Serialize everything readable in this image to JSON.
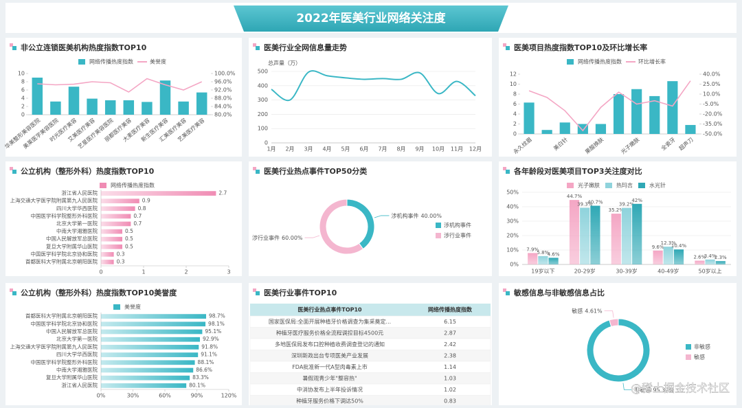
{
  "title": "2022年医美行业网络关注度",
  "watermark": "@稀土掘金技术社区",
  "chart_data": [
    {
      "type": "bar",
      "title": "非公立连锁医美机构热度指数TOP10",
      "categories": [
        "华美整形美容医院",
        "美莱医学美容医院",
        "时光医疗美容",
        "艾美医疗美容",
        "艺星医疗美容医院",
        "丽都医疗美容",
        "大麦医疗美容",
        "新生医疗美容",
        "汇美医疗美容",
        "艺美医疗美容"
      ],
      "series": [
        {
          "name": "网络传播热度指数",
          "type": "bar",
          "color": "#3ab7c5",
          "values": [
            9,
            3.2,
            6.8,
            3.9,
            3.5,
            3.5,
            3.1,
            8.3,
            3.2,
            5.4
          ]
        },
        {
          "name": "美誉度",
          "type": "line",
          "axis": "y2",
          "color": "#f4a6c4",
          "values": [
            95,
            94.5,
            94.8,
            96,
            95.5,
            91,
            97.5,
            94.5,
            92,
            96
          ]
        }
      ],
      "ylim": [
        0,
        10
      ],
      "yticks": [
        0,
        2,
        4,
        6,
        8,
        10
      ],
      "y2lim": [
        80,
        100
      ],
      "y2ticks": [
        {
          "value": 80,
          "label": "80.0%"
        },
        {
          "value": 84,
          "label": "84.0%"
        },
        {
          "value": 88,
          "label": "88.0%"
        },
        {
          "value": 92,
          "label": "92.0%"
        },
        {
          "value": 96,
          "label": "96.0%"
        },
        {
          "value": 100,
          "label": "100.0%"
        }
      ],
      "grid": false,
      "legend": "top"
    },
    {
      "type": "line",
      "title": "医美行业全网信息量走势",
      "ylabel": "总声量（万）",
      "categories": [
        "1月",
        "2月",
        "3月",
        "4月",
        "5月",
        "6月",
        "7月",
        "8月",
        "9月",
        "10月",
        "11月",
        "12月"
      ],
      "values": [
        375,
        300,
        495,
        470,
        455,
        445,
        450,
        445,
        490,
        345,
        430,
        330
      ],
      "color": "#3ab7c5",
      "ylim": [
        0,
        500
      ],
      "yticks": [
        0,
        100,
        200,
        300,
        400,
        500
      ],
      "grid": true
    },
    {
      "type": "bar",
      "title": "医美项目热度指数TOP10及环比增长率",
      "categories": [
        "永久纹眉",
        null,
        "美白针",
        null,
        "果酸换肤",
        null,
        "光子嫩肤",
        null,
        "全瓷牙",
        "超声刀"
      ],
      "series": [
        {
          "name": "网络传播热度指数",
          "type": "bar",
          "color": "#3ab7c5",
          "values": [
            6.3,
            0.8,
            2.3,
            2.0,
            2.0,
            8.0,
            9.0,
            7.6,
            10.6,
            1.8
          ]
        },
        {
          "name": "环比增长率",
          "type": "line",
          "axis": "y2",
          "color": "#f4a6c4",
          "values": [
            15,
            5,
            -15,
            -45,
            -10,
            13,
            -5,
            0,
            -8,
            30
          ]
        }
      ],
      "ylim": [
        0,
        12
      ],
      "yticks": [
        0,
        2,
        4,
        6,
        8,
        10,
        12
      ],
      "y2lim": [
        -50,
        40
      ],
      "y2ticks": [
        {
          "value": -50,
          "label": "-50.0%"
        },
        {
          "value": -35,
          "label": "-35.0%"
        },
        {
          "value": -20,
          "label": "-20.0%"
        },
        {
          "value": -5,
          "label": "-5.0%"
        },
        {
          "value": 10,
          "label": "10.0%"
        },
        {
          "value": 25,
          "label": "25.0%"
        },
        {
          "value": 40,
          "label": "40.0%"
        }
      ],
      "grid": false,
      "legend": "top"
    },
    {
      "type": "hbar",
      "title": "公立机构（整形外科）热度指数TOP10",
      "categories": [
        "浙江省人民医院",
        "上海交通大学医学院附属第九人民医院",
        "四川大学华西医院",
        "中国医学科学院整形外科医院",
        "北京大学第一医院",
        "中南大学湘雅医院",
        "中国人民解放军总医院",
        "复旦大学附属华山医院",
        "中国医学科学院北京协和医院",
        "首都医科大学附属北京朝阳医院"
      ],
      "series": [
        {
          "name": "网络传播热度指数",
          "color": "#f08cb4",
          "values": [
            2.7,
            0.9,
            0.8,
            0.7,
            0.7,
            0.5,
            0.5,
            0.5,
            0.3,
            0.3
          ]
        }
      ],
      "xlim": [
        0,
        3
      ],
      "xticks": [
        0,
        1,
        2,
        3
      ],
      "legend": "top"
    },
    {
      "type": "pie",
      "title": "医美行业热点事件TOP50分类",
      "categories": [
        "涉机构事件",
        "涉行业事件"
      ],
      "values": [
        40,
        60
      ],
      "value_labels": [
        "40.00%",
        "60.00%"
      ],
      "colors": [
        "#3ab7c5",
        "#f4b6cf"
      ],
      "legend": "right"
    },
    {
      "type": "bar",
      "title": "各年龄段对医美项目TOP3关注度对比",
      "categories": [
        "19岁以下",
        "20-29岁",
        "30-39岁",
        "40-49岁",
        "50岁以上"
      ],
      "series": [
        {
          "name": "光子嫩肤",
          "type": "bar",
          "color": "#f4a6c4",
          "values": [
            7.9,
            44.7,
            35.2,
            9.6,
            2.6
          ],
          "value_labels": [
            "7.9%",
            "44.7%",
            "35.2%",
            "9.6%",
            "2.6%"
          ]
        },
        {
          "name": "热玛吉",
          "type": "bar",
          "color": "#8fd3dc",
          "values": [
            5.8,
            39.3,
            39.2,
            12.3,
            3.4
          ],
          "value_labels": [
            "5.8%",
            "39.3%",
            "39.2%",
            "12.3%",
            "3.4%"
          ]
        },
        {
          "name": "水光针",
          "type": "bar",
          "color": "#2fa8b5",
          "values": [
            4.6,
            40.7,
            42,
            10.4,
            2.3
          ],
          "value_labels": [
            "4.6%",
            "40.7%",
            "42%",
            "10.4%",
            "2.3%"
          ]
        }
      ],
      "ylim": [
        0,
        50
      ],
      "yticks": [
        {
          "value": 0,
          "label": "0%"
        },
        {
          "value": 10,
          "label": "10%"
        },
        {
          "value": 20,
          "label": "20%"
        },
        {
          "value": 30,
          "label": "30%"
        },
        {
          "value": 40,
          "label": "40%"
        },
        {
          "value": 50,
          "label": "50%"
        }
      ],
      "grid": true,
      "legend": "top"
    },
    {
      "type": "hbar",
      "title": "公立机构（整形外科）热度指数TOP10美誉度",
      "categories": [
        "首都医科大学附属北京朝阳医院",
        "中国医学科学院北京协和医院",
        "中国人民解放军总医院",
        "北京大学第一医院",
        "上海交通大学医学院附属第九人民医院",
        "四川大学华西医院",
        "中国医学科学院整形外科医院",
        "中南大学湘雅医院",
        "复旦大学附属华山医院",
        "浙江省人民医院"
      ],
      "series": [
        {
          "name": "美誉度",
          "color": "#3ab7c5",
          "values": [
            98.7,
            98.1,
            95.1,
            92.9,
            91.8,
            91.1,
            88.1,
            86.6,
            83.3,
            80.1
          ],
          "value_labels": [
            "98.7%",
            "98.1%",
            "95.1%",
            "92.9%",
            "91.8%",
            "91.1%",
            "88.1%",
            "86.6%",
            "83.3%",
            "80.1%"
          ]
        }
      ],
      "xlim": [
        0,
        120
      ],
      "xticks": [
        {
          "value": 0,
          "label": "0%"
        },
        {
          "value": 30,
          "label": "30%"
        },
        {
          "value": 60,
          "label": "60%"
        },
        {
          "value": 90,
          "label": "90%"
        },
        {
          "value": 120,
          "label": "120%"
        }
      ],
      "legend": "top"
    },
    {
      "type": "table",
      "title": "医美行业事件TOP10",
      "columns": [
        "医美行业热点事件TOP10",
        "网络传播热度指数"
      ],
      "rows": [
        [
          "国家医保局:全面开展种植牙价格调查为集采奠定...",
          6.15
        ],
        [
          "种植牙医疗服务价格全流程调控目标4500元",
          2.87
        ],
        [
          "多地医保局发布口腔种植收费调查登记的通知",
          2.42
        ],
        [
          "深圳新政出台专项医美产业发展",
          2.38
        ],
        [
          "FDA批准新一代A型肉毒素上市",
          1.14
        ],
        [
          "暑假观青少年\"整容热\"",
          1.03
        ],
        [
          "中消协发布上半年投诉情况",
          1.02
        ],
        [
          "种植牙服务价格下调达50%",
          0.83
        ]
      ]
    },
    {
      "type": "pie",
      "title": "敏感信息与非敏感信息占比",
      "categories": [
        "非敏感",
        "敏感"
      ],
      "values": [
        95.39,
        4.61
      ],
      "value_labels": [
        "95.39%",
        "4.61%"
      ],
      "colors": [
        "#3ab7c5",
        "#f4b6cf"
      ],
      "legend": "right"
    }
  ]
}
